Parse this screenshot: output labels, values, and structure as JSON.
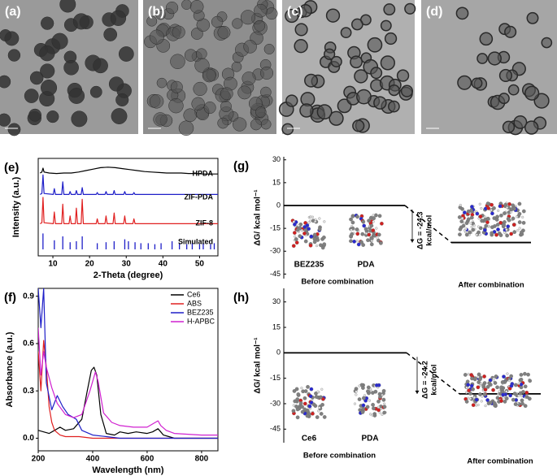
{
  "images": [
    {
      "label": "(a)"
    },
    {
      "label": "(b)"
    },
    {
      "label": "(c)"
    },
    {
      "label": "(d)"
    }
  ],
  "chart_data": [
    {
      "type": "xrd",
      "label": "(e)",
      "x_label": "2-Theta (degree)",
      "y_label": "Intensity (a.u.)",
      "xlim": [
        6,
        55
      ],
      "xticks": [
        10,
        20,
        30,
        40,
        50
      ],
      "ylim": [
        0,
        10
      ],
      "series": [
        {
          "name": "HPDA",
          "color": "#000000",
          "x": [
            6.5,
            7.0,
            7.3,
            7.6,
            9,
            11,
            13,
            15,
            17,
            19,
            21,
            23,
            25,
            27,
            29,
            31,
            33,
            35,
            37,
            39,
            41,
            43,
            45,
            47,
            49,
            51,
            53,
            55
          ],
          "values": [
            8.5,
            8.6,
            9.0,
            8.6,
            8.5,
            8.45,
            8.5,
            8.5,
            8.6,
            8.75,
            8.9,
            9.05,
            9.1,
            9.05,
            8.95,
            8.85,
            8.75,
            8.65,
            8.6,
            8.55,
            8.5,
            8.5,
            8.5,
            8.45,
            8.45,
            8.4,
            8.4,
            8.4
          ]
        },
        {
          "name": "ZIF-PDA",
          "color": "#1f1fc8",
          "x": [
            6.5,
            7.0,
            7.3,
            7.6,
            10.1,
            10.4,
            10.7,
            12.4,
            12.7,
            13.0,
            14.4,
            14.7,
            15.0,
            16.1,
            16.4,
            16.7,
            17.7,
            18.0,
            18.3,
            21.8,
            22.1,
            22.4,
            24.2,
            24.5,
            24.8,
            26.4,
            26.7,
            27.0,
            29.3,
            29.6,
            29.9,
            31.8,
            32.1,
            32.4,
            36,
            40,
            45,
            50,
            55
          ],
          "values": [
            6.3,
            6.4,
            8.3,
            6.4,
            6.3,
            6.9,
            6.3,
            6.3,
            7.6,
            6.3,
            6.3,
            6.6,
            6.3,
            6.3,
            6.7,
            6.3,
            6.3,
            7.0,
            6.3,
            6.3,
            6.5,
            6.3,
            6.3,
            6.6,
            6.3,
            6.3,
            6.7,
            6.3,
            6.3,
            6.6,
            6.3,
            6.3,
            6.5,
            6.3,
            6.3,
            6.3,
            6.3,
            6.3,
            6.3
          ]
        },
        {
          "name": "ZIF-8",
          "color": "#e02020",
          "x": [
            6.5,
            7.0,
            7.3,
            7.6,
            10.1,
            10.4,
            10.7,
            12.4,
            12.7,
            13.0,
            14.4,
            14.7,
            15.0,
            16.1,
            16.4,
            16.7,
            17.7,
            18.0,
            18.3,
            21.8,
            22.1,
            22.4,
            24.2,
            24.5,
            24.8,
            26.4,
            26.7,
            27.0,
            29.3,
            29.6,
            29.9,
            31.8,
            32.1,
            32.4,
            36,
            40,
            45,
            50,
            55
          ],
          "values": [
            3.3,
            3.4,
            6.0,
            3.4,
            3.3,
            4.5,
            3.3,
            3.3,
            5.3,
            3.3,
            3.3,
            4.1,
            3.3,
            3.3,
            4.9,
            3.3,
            3.3,
            5.8,
            3.3,
            3.3,
            3.8,
            3.3,
            3.3,
            4.1,
            3.3,
            3.3,
            4.4,
            3.3,
            3.3,
            4.1,
            3.3,
            3.3,
            3.8,
            3.3,
            3.3,
            3.3,
            3.3,
            3.3,
            3.3
          ]
        },
        {
          "name": "Simulated",
          "color": "#1f1fc8",
          "style": "stick",
          "x": [
            7.3,
            10.4,
            12.7,
            14.7,
            16.4,
            18.0,
            22.1,
            24.5,
            26.7,
            29.6,
            30.6,
            32.4,
            34.0,
            36.0,
            37.8,
            39.5,
            42.5,
            44.5,
            46.5,
            48.0,
            50.0,
            51.0,
            53.0,
            54.0
          ],
          "values": [
            2.3,
            1.6,
            2.0,
            1.4,
            1.5,
            2.0,
            1.3,
            1.4,
            1.5,
            1.7,
            1.5,
            1.4,
            1.3,
            1.3,
            1.2,
            1.3,
            1.5,
            1.3,
            1.2,
            1.3,
            1.2,
            1.3,
            1.2,
            1.3
          ]
        }
      ]
    },
    {
      "type": "line",
      "label": "(f)",
      "x_label": "Wavelength (nm)",
      "y_label": "Absorbance (a.u.)",
      "xlim": [
        200,
        860
      ],
      "xticks": [
        200,
        400,
        600,
        800
      ],
      "ylim": [
        -0.08,
        0.95
      ],
      "yticks": [
        {
          "value": 0,
          "label": "0.0"
        },
        {
          "value": 0.3,
          "label": "0.3"
        },
        {
          "value": 0.6,
          "label": "0.6"
        },
        {
          "value": 0.9,
          "label": "0.9"
        }
      ],
      "legend": "top-right",
      "series": [
        {
          "name": "Ce6",
          "color": "#000000",
          "x": [
            200,
            220,
            240,
            260,
            280,
            300,
            330,
            360,
            380,
            395,
            405,
            415,
            430,
            450,
            480,
            500,
            530,
            560,
            600,
            620,
            640,
            650,
            660,
            680,
            700,
            860
          ],
          "values": [
            0.05,
            0.04,
            0.03,
            0.05,
            0.07,
            0.05,
            0.06,
            0.12,
            0.3,
            0.43,
            0.45,
            0.4,
            0.15,
            0.03,
            0.02,
            0.04,
            0.03,
            0.04,
            0.03,
            0.04,
            0.06,
            0.04,
            0.02,
            0.01,
            0,
            0
          ]
        },
        {
          "name": "ABS",
          "color": "#e02020",
          "x": [
            200,
            210,
            220,
            230,
            240,
            250,
            260,
            280,
            300,
            350,
            400,
            500,
            860
          ],
          "values": [
            0.55,
            0.3,
            0.62,
            0.45,
            0.2,
            0.1,
            0.05,
            0.02,
            0.01,
            0.01,
            0,
            0,
            0
          ]
        },
        {
          "name": "BEZ235",
          "color": "#1f1fc8",
          "x": [
            200,
            210,
            220,
            230,
            250,
            270,
            290,
            310,
            340,
            360,
            400,
            450,
            500,
            860
          ],
          "values": [
            0.95,
            0.7,
            0.95,
            0.35,
            0.18,
            0.27,
            0.2,
            0.15,
            0.12,
            0.05,
            0.02,
            0.01,
            0,
            0
          ]
        },
        {
          "name": "H-APBC",
          "color": "#d020d0",
          "x": [
            200,
            210,
            220,
            230,
            250,
            270,
            300,
            330,
            360,
            390,
            410,
            420,
            440,
            470,
            500,
            550,
            600,
            630,
            640,
            650,
            670,
            700,
            800,
            860
          ],
          "values": [
            0.7,
            0.4,
            0.55,
            0.45,
            0.32,
            0.22,
            0.15,
            0.13,
            0.15,
            0.3,
            0.42,
            0.36,
            0.16,
            0.1,
            0.08,
            0.07,
            0.07,
            0.1,
            0.11,
            0.08,
            0.05,
            0.03,
            0.02,
            0.02
          ]
        }
      ]
    },
    {
      "type": "energy",
      "label": "(g)",
      "y_label": "ΔG/ kcal mol⁻¹",
      "ylim": [
        -48,
        32
      ],
      "yticks": [
        30,
        15,
        0,
        -15,
        -30,
        -45
      ],
      "values": [
        0,
        -24.3
      ],
      "delta_label": [
        "ΔG = -24.3",
        "kcal/mol"
      ],
      "molecules": [
        "BEZ235",
        "PDA"
      ],
      "before_label": "Before combination",
      "after_label": "After combination"
    },
    {
      "type": "energy",
      "label": "(h)",
      "y_label": "ΔG/ kcal mol⁻¹",
      "ylim": [
        -53,
        38
      ],
      "yticks": [
        30,
        15,
        0,
        -15,
        -30,
        -45
      ],
      "values": [
        0,
        -24.2
      ],
      "delta_label": [
        "ΔG = -24.2",
        "kcal/mol"
      ],
      "molecules": [
        "Ce6",
        "PDA"
      ],
      "before_label": "Before combination",
      "after_label": "After combination"
    }
  ]
}
